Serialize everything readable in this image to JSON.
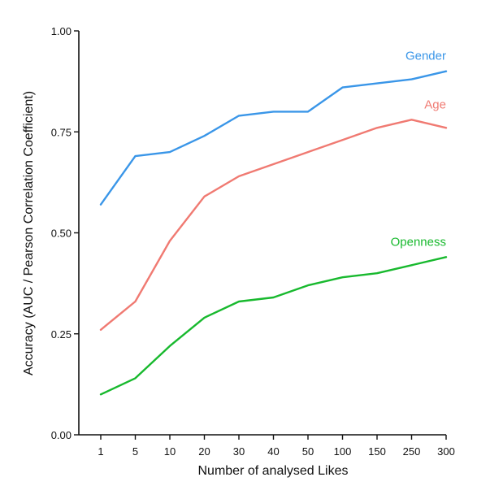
{
  "chart_data": {
    "type": "line",
    "title": "",
    "xlabel": "Number of analysed Likes",
    "ylabel": "Accuracy (AUC / Pearson Correlation Coefficient)",
    "categories": [
      "1",
      "5",
      "10",
      "20",
      "30",
      "40",
      "50",
      "100",
      "150",
      "250",
      "300"
    ],
    "ylim": [
      0,
      1
    ],
    "yticks": [
      "0.00",
      "0.25",
      "0.50",
      "0.75",
      "1.00"
    ],
    "grid": false,
    "legend": "inline-labels",
    "series": [
      {
        "name": "Gender",
        "color": "#3a96e8",
        "values": [
          0.57,
          0.69,
          0.7,
          0.74,
          0.79,
          0.8,
          0.8,
          0.86,
          0.87,
          0.88,
          0.9
        ]
      },
      {
        "name": "Age",
        "color": "#f07a72",
        "values": [
          0.26,
          0.33,
          0.48,
          0.59,
          0.64,
          0.67,
          0.7,
          0.73,
          0.76,
          0.78,
          0.76
        ]
      },
      {
        "name": "Openness",
        "color": "#18b92e",
        "values": [
          0.1,
          0.14,
          0.22,
          0.29,
          0.33,
          0.34,
          0.37,
          0.39,
          0.4,
          0.42,
          0.44
        ]
      }
    ]
  }
}
